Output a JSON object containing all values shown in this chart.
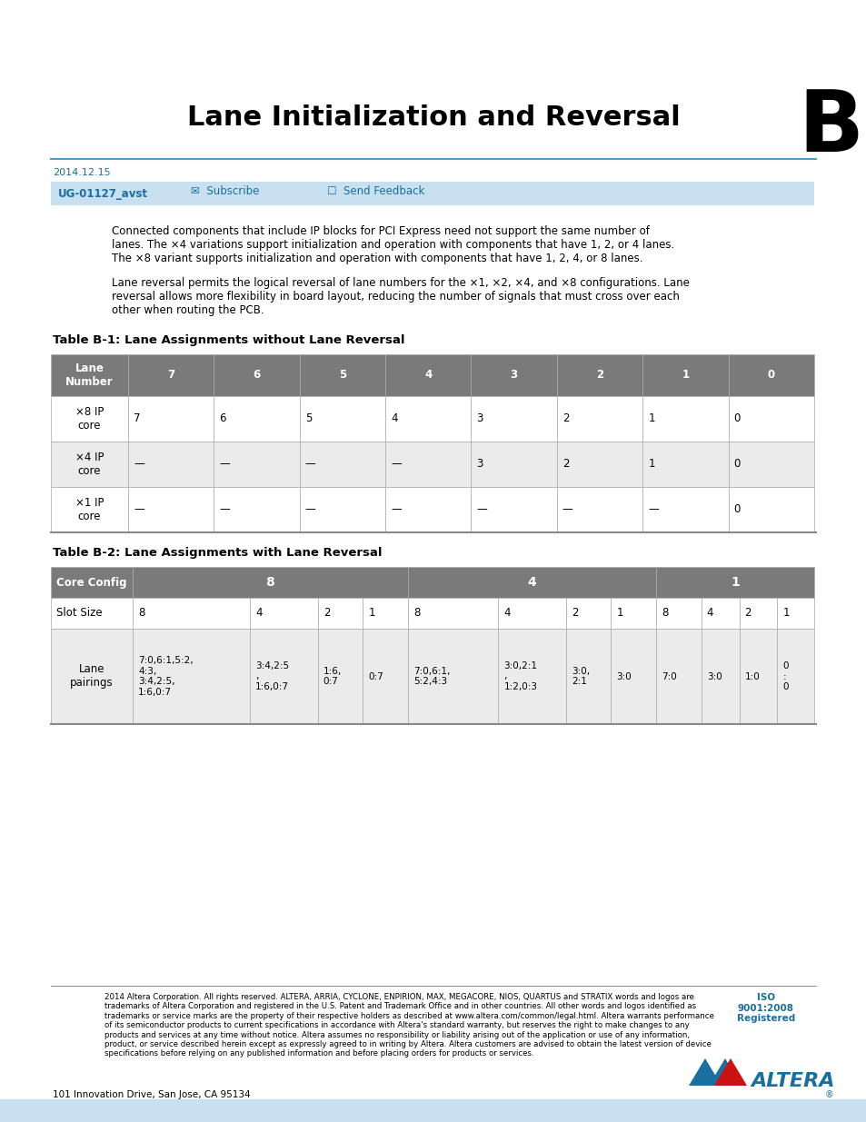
{
  "title": "Lane Initialization and Reversal",
  "appendix_letter": "B",
  "date": "2014.12.15",
  "doc_id": "UG-01127_avst",
  "bg_color": "#ffffff",
  "header_bar_color": "#c8e0ef",
  "table_header_color": "#7a7a7a",
  "table_row_light": "#ffffff",
  "table_row_dark": "#ebebeb",
  "blue_color": "#1a6fa0",
  "para1_line1": "Connected components that include IP blocks for PCI Express need not support the same number of",
  "para1_line2": "lanes. The ×4 variations support initialization and operation with components that have 1, 2, or 4 lanes.",
  "para1_line3": "The ×8 variant supports initialization and operation with components that have 1, 2, 4, or 8 lanes.",
  "para2_line1": "Lane reversal permits the logical reversal of lane numbers for the ×1, ×2, ×4, and ×8 configurations. Lane",
  "para2_line2": "reversal allows more flexibility in board layout, reducing the number of signals that must cross over each",
  "para2_line3": "other when routing the PCB.",
  "table1_title": "Table B-1: Lane Assignments without Lane Reversal",
  "table2_title": "Table B-2: Lane Assignments with Lane Reversal",
  "t1_headers": [
    "Lane\nNumber",
    "7",
    "6",
    "5",
    "4",
    "3",
    "2",
    "1",
    "0"
  ],
  "t1_row1": [
    "×8 IP\ncore",
    "7",
    "6",
    "5",
    "4",
    "3",
    "2",
    "1",
    "0"
  ],
  "t1_row2": [
    "×4 IP\ncore",
    "—",
    "—",
    "—",
    "—",
    "3",
    "2",
    "1",
    "0"
  ],
  "t1_row3": [
    "×1 IP\ncore",
    "—",
    "—",
    "—",
    "—",
    "—",
    "—",
    "—",
    "0"
  ],
  "t2_group_headers": [
    "Core Config",
    "8",
    "4",
    "1"
  ],
  "t2_slot_sizes": [
    "8",
    "4",
    "2",
    "1",
    "8",
    "4",
    "2",
    "1",
    "8",
    "4",
    "2",
    "1"
  ],
  "t2_lane_pairings": [
    "7:0,6:1,5:2,\n4:3,\n3:4,2:5,\n1:6,0:7",
    "3:4,2:5\n,\n1:6,0:7",
    "1:6,\n0:7",
    "0:7",
    "7:0,6:1,\n5:2,4:3",
    "3:0,2:1\n,\n1:2,0:3",
    "3:0,\n2:1",
    "3:0",
    "7:0",
    "3:0",
    "1:0",
    "0\n:\n0"
  ],
  "footer_text": "2014 Altera Corporation. All rights reserved. ALTERA, ARRIA, CYCLONE, ENPIRION, MAX, MEGACORE, NIOS, QUARTUS and STRATIX words and logos are\ntrademarks of Altera Corporation and registered in the U.S. Patent and Trademark Office and in other countries. All other words and logos identified as\ntrademarks or service marks are the property of their respective holders as described at www.altera.com/common/legal.html. Altera warrants performance\nof its semiconductor products to current specifications in accordance with Altera's standard warranty, but reserves the right to make changes to any\nproducts and services at any time without notice. Altera assumes no responsibility or liability arising out of the application or use of any information,\nproduct, or service described herein except as expressly agreed to in writing by Altera. Altera customers are advised to obtain the latest version of device\nspecifications before relying on any published information and before placing orders for products or services.",
  "footer_address": "101 Innovation Drive, San Jose, CA 95134",
  "iso_text": "ISO\n9001:2008\nRegistered"
}
